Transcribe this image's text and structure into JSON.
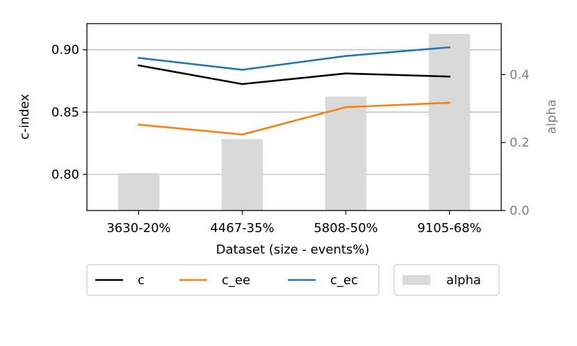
{
  "chart_data": {
    "type": "bar+line",
    "categories": [
      "3630-20%",
      "4467-35%",
      "5808-50%",
      "9105-68%"
    ],
    "xlabel": "Dataset (size - events%)",
    "ylabel": "c-index",
    "ylabel_right": "alpha",
    "ylim": [
      0.771,
      0.921
    ],
    "ylim_right": [
      0.0,
      0.55
    ],
    "yticks": [
      0.8,
      0.85,
      0.9
    ],
    "yticks_labels": [
      "0.80",
      "0.85",
      "0.90"
    ],
    "yticks_right": [
      0.0,
      0.2,
      0.4
    ],
    "yticks_right_labels": [
      "0.0",
      "0.2",
      "0.4"
    ],
    "grid": "horizontal",
    "series": [
      {
        "name": "c",
        "axis": "left",
        "kind": "line",
        "color": "#000000",
        "values": [
          0.8875,
          0.8725,
          0.881,
          0.8785
        ]
      },
      {
        "name": "c_ee",
        "axis": "left",
        "kind": "line",
        "color": "#ff7f0e",
        "values": [
          0.84,
          0.832,
          0.854,
          0.8575
        ]
      },
      {
        "name": "c_ec",
        "axis": "left",
        "kind": "line",
        "color": "#1f77b4",
        "values": [
          0.8935,
          0.884,
          0.895,
          0.902
        ]
      },
      {
        "name": "alpha",
        "axis": "right",
        "kind": "bar",
        "color": "#d9d9d9",
        "values": [
          0.11,
          0.21,
          0.335,
          0.52
        ]
      }
    ],
    "legend_position": "bottom"
  }
}
